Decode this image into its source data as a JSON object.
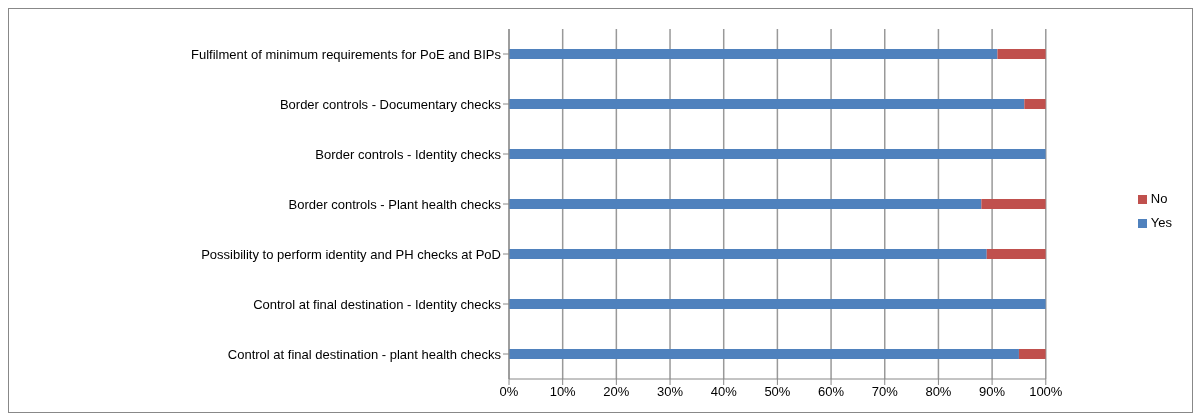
{
  "chart_data": {
    "type": "bar",
    "orientation": "horizontal",
    "stacked": true,
    "categories": [
      "Fulfilment of minimum  requirements for PoE and BIPs",
      "Border controls - Documentary checks",
      "Border controls - Identity checks",
      "Border controls - Plant health checks",
      "Possibility  to perform identity and PH checks at PoD",
      "Control at final destination - Identity checks",
      "Control at final destination - plant health checks"
    ],
    "series": [
      {
        "name": "Yes",
        "color": "#4f81bd",
        "values": [
          91,
          96,
          100,
          88,
          89,
          100,
          95
        ]
      },
      {
        "name": "No",
        "color": "#c0504d",
        "values": [
          9,
          4,
          0,
          12,
          11,
          0,
          5
        ]
      }
    ],
    "xlim": [
      0,
      100
    ],
    "xticks": [
      {
        "value": 0,
        "label": "0%"
      },
      {
        "value": 10,
        "label": "10%"
      },
      {
        "value": 20,
        "label": "20%"
      },
      {
        "value": 30,
        "label": "30%"
      },
      {
        "value": 40,
        "label": "40%"
      },
      {
        "value": 50,
        "label": "50%"
      },
      {
        "value": 60,
        "label": "60%"
      },
      {
        "value": 70,
        "label": "70%"
      },
      {
        "value": 80,
        "label": "80%"
      },
      {
        "value": 90,
        "label": "90%"
      },
      {
        "value": 100,
        "label": "100%"
      }
    ],
    "grid": "x",
    "legend": "right"
  }
}
